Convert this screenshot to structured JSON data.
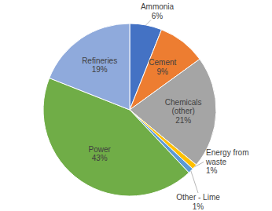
{
  "chart_data": {
    "type": "pie",
    "categories": [
      "Ammonia",
      "Cement",
      "Chemicals (other)",
      "Energy from waste",
      "Other - Lime",
      "Power",
      "Refineries"
    ],
    "values": [
      6,
      9,
      21,
      1,
      1,
      43,
      19
    ],
    "value_labels": [
      "6%",
      "9%",
      "21%",
      "1%",
      "1%",
      "43%",
      "19%"
    ],
    "colors": [
      "#4472c4",
      "#ed7d31",
      "#a5a5a5",
      "#ffc000",
      "#5b9bd5",
      "#70ad47",
      "#8faadc"
    ],
    "data_labels": true
  }
}
